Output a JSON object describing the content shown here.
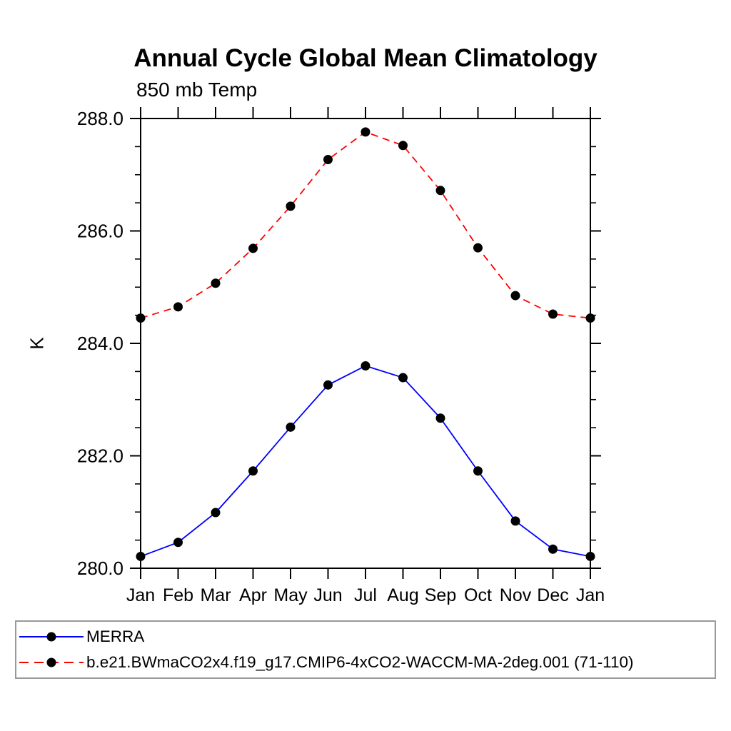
{
  "title": "Annual Cycle Global Mean Climatology",
  "subtitle": "850 mb Temp",
  "chart_data": {
    "type": "line",
    "title": "Annual Cycle Global Mean Climatology",
    "subtitle": "850 mb Temp",
    "xlabel": "",
    "ylabel": "K",
    "categories": [
      "Jan",
      "Feb",
      "Mar",
      "Apr",
      "May",
      "Jun",
      "Jul",
      "Aug",
      "Sep",
      "Oct",
      "Nov",
      "Dec",
      "Jan"
    ],
    "ylim": [
      280.0,
      288.0
    ],
    "ytick_major_values": [
      280.0,
      282.0,
      284.0,
      286.0,
      288.0
    ],
    "ytick_major_labels": [
      "280.0",
      "282.0",
      "284.0",
      "286.0",
      "288.0"
    ],
    "ytick_minor_step": 0.5,
    "grid": false,
    "legend_position": "bottom-left-box",
    "frame_color": "#000000",
    "legend_border_color": "#999999",
    "marker": "filled-circle",
    "marker_color": "#000000",
    "series": [
      {
        "name": "MERRA",
        "color": "#0000ff",
        "line_style": "solid",
        "values": [
          280.21,
          280.46,
          280.99,
          281.73,
          282.51,
          283.26,
          283.6,
          283.39,
          282.67,
          281.73,
          280.84,
          280.34,
          280.21
        ]
      },
      {
        "name": "b.e21.BWmaCO2x4.f19_g17.CMIP6-4xCO2-WACCM-MA-2deg.001 (71-110)",
        "color": "#ff0000",
        "line_style": "dashed",
        "values": [
          284.45,
          284.65,
          285.07,
          285.69,
          286.44,
          287.27,
          287.76,
          287.52,
          286.72,
          285.7,
          284.85,
          284.52,
          284.45
        ]
      }
    ]
  }
}
